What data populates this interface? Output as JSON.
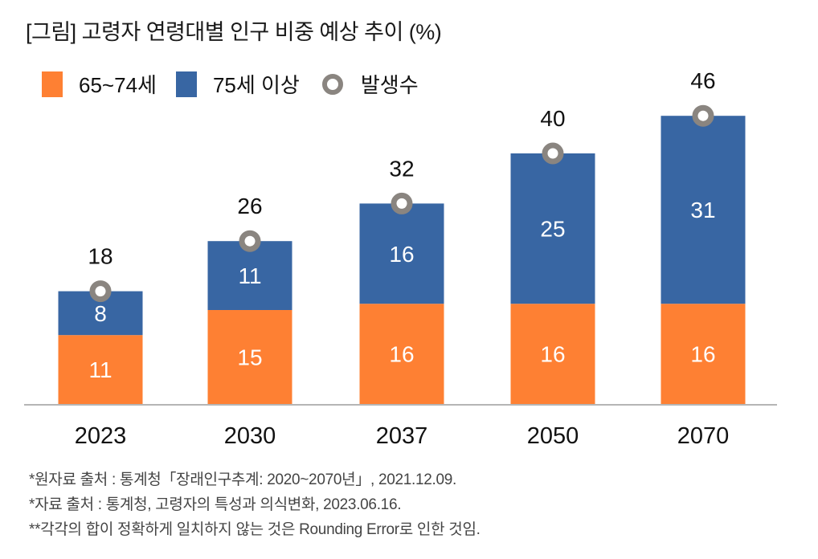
{
  "title": "[그림] 고령자 연령대별 인구 비중 예상 추이 (%)",
  "legend": [
    {
      "label": "65~74세",
      "color": "#FE8033",
      "marker": "square"
    },
    {
      "label": "75세 이상",
      "color": "#3866A3",
      "marker": "square"
    },
    {
      "label": "발생수",
      "color": "#8A8580",
      "marker": "ring"
    }
  ],
  "chart_data": {
    "type": "bar",
    "stacked": true,
    "title": "[그림] 고령자 연령대별 인구 비중 예상 추이 (%)",
    "xlabel": "",
    "ylabel": "",
    "categories": [
      "2023",
      "2030",
      "2037",
      "2050",
      "2070"
    ],
    "series": [
      {
        "name": "65~74세",
        "values": [
          11,
          15,
          16,
          16,
          16
        ],
        "color": "#FE8033"
      },
      {
        "name": "75세 이상",
        "values": [
          8,
          11,
          16,
          25,
          31
        ],
        "color": "#3866A3"
      }
    ],
    "totals": {
      "name": "발생수",
      "values": [
        18,
        26,
        32,
        40,
        46
      ],
      "color": "#8A8580"
    },
    "ylim": [
      0,
      46
    ],
    "grid": false,
    "legend_position": "top-left"
  },
  "notes": [
    "*원자료 출처 : 통계청「장래인구추계: 2020~2070년」, 2021.12.09.",
    "*자료 출처 : 통계청, 고령자의 특성과 의식변화, 2023.06.16.",
    "**각각의 합이 정확하게 일치하지 않는 것은 Rounding Error로 인한 것임."
  ]
}
